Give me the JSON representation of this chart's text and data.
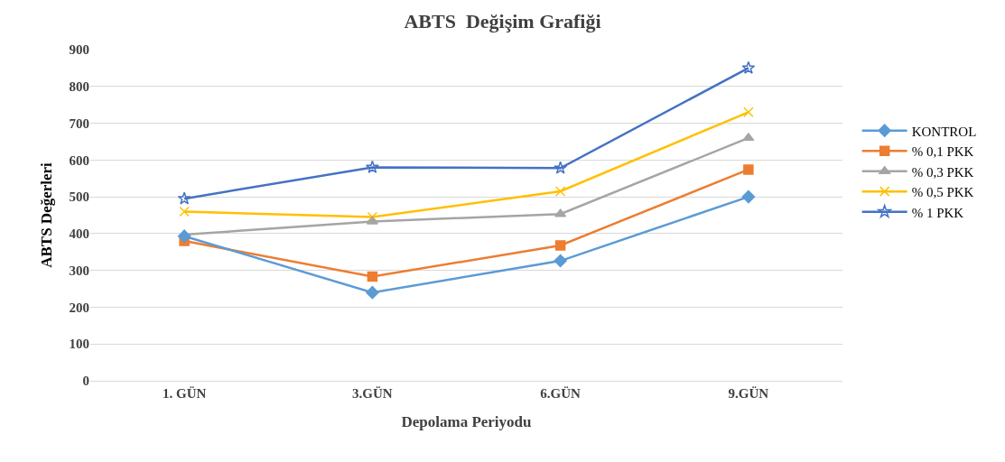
{
  "chart_data": {
    "type": "line",
    "title": "ABTS  Değişim Grafiği",
    "xlabel": "Depolama Periyodu",
    "ylabel": "ABTS Değerleri",
    "categories": [
      "1. GÜN",
      "3.GÜN",
      "6.GÜN",
      "9.GÜN"
    ],
    "ylim": [
      0,
      900
    ],
    "yticks": [
      0,
      100,
      200,
      300,
      400,
      500,
      600,
      700,
      800,
      900
    ],
    "grid": "y",
    "legend": "right",
    "series": [
      {
        "name": "KONTROL",
        "color": "#5b9bd5",
        "marker": "diamond",
        "values": [
          393,
          240,
          326,
          500
        ]
      },
      {
        "name": "% 0,1 PKK",
        "color": "#ed7d31",
        "marker": "square",
        "values": [
          380,
          283,
          368,
          574
        ]
      },
      {
        "name": "% 0,3 PKK",
        "color": "#a5a5a5",
        "marker": "triangle",
        "values": [
          397,
          433,
          453,
          660
        ]
      },
      {
        "name": "% 0,5 PKK",
        "color": "#ffc000",
        "marker": "cross",
        "values": [
          460,
          445,
          515,
          730
        ]
      },
      {
        "name": "% 1 PKK",
        "color": "#4472c4",
        "marker": "star",
        "values": [
          495,
          580,
          578,
          850
        ]
      }
    ]
  }
}
